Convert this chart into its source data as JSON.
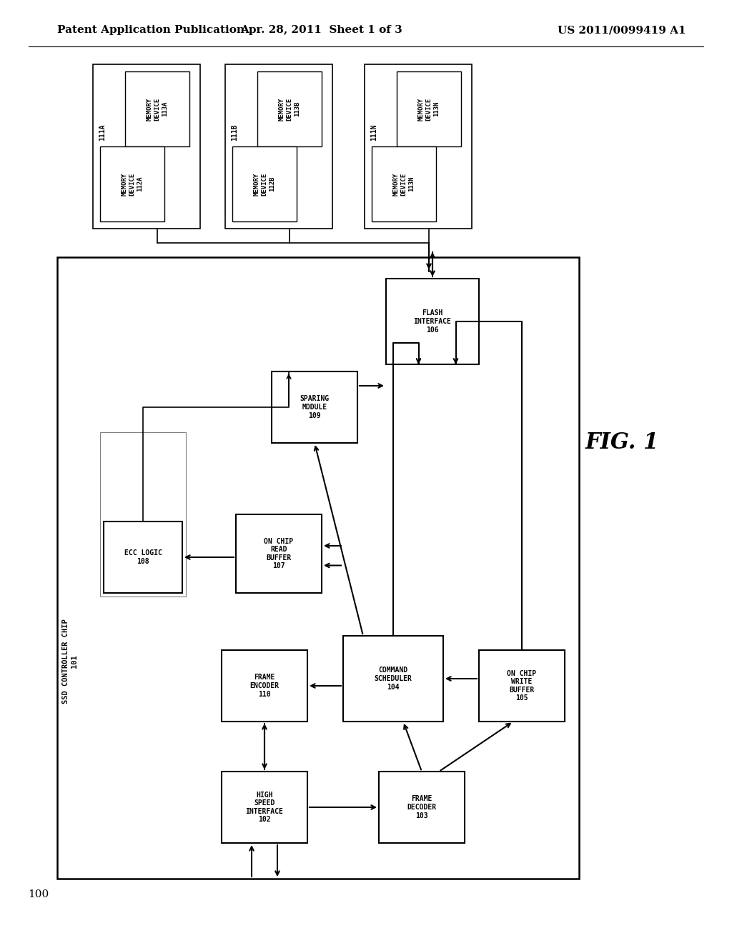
{
  "header_left": "Patent Application Publication",
  "header_mid": "Apr. 28, 2011  Sheet 1 of 3",
  "header_right": "US 2011/0099419 A1",
  "fig_label": "FIG. 1",
  "bg_color": "#ffffff"
}
